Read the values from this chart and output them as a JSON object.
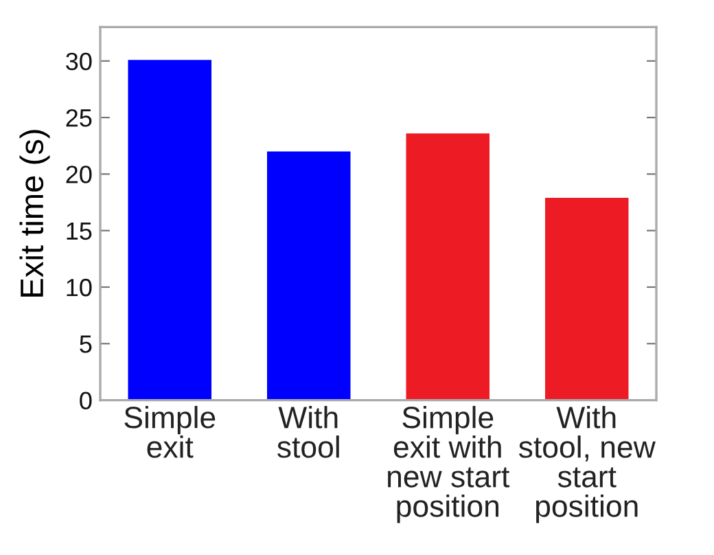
{
  "chart_data": {
    "type": "bar",
    "ylabel": "Exit time (s)",
    "categories": [
      "Simple\nexit",
      "With\nstool",
      "Simple\nexit with\nnew start\nposition",
      "With\nstool, new\nstart\nposition"
    ],
    "values": [
      30.1,
      22.0,
      23.6,
      17.9
    ],
    "colors": [
      "#0000ff",
      "#0000ff",
      "#ed1c24",
      "#ed1c24"
    ],
    "ylim": [
      0,
      33
    ],
    "yticks": [
      0,
      5,
      10,
      15,
      20,
      25,
      30
    ],
    "grid": false
  }
}
